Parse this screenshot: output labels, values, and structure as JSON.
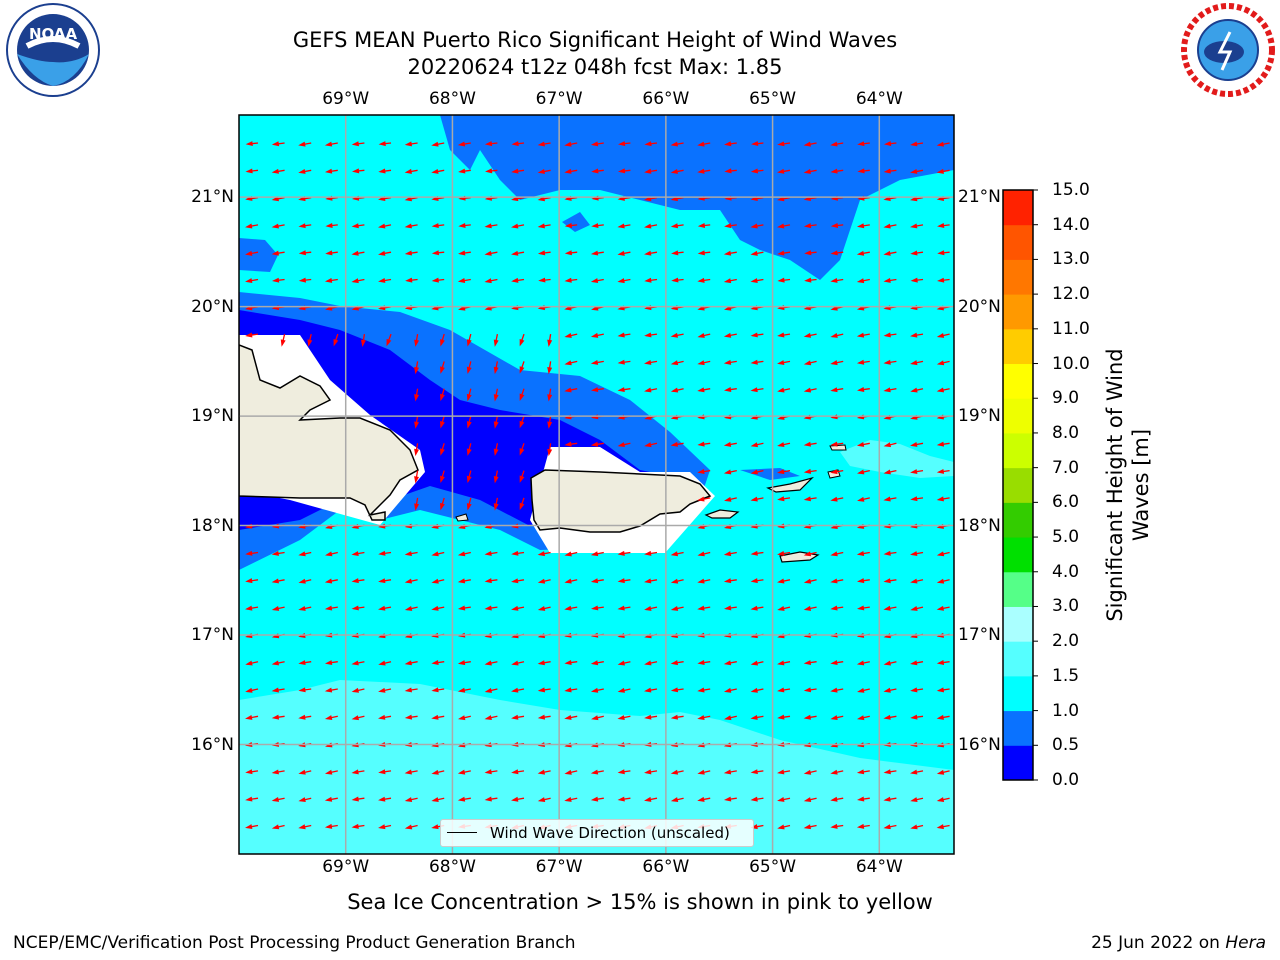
{
  "header": {
    "title_line1": "GEFS MEAN Puerto Rico Significant Height of Wind Waves",
    "title_line2": "20220624 t12z 048h fcst   Max: 1.85"
  },
  "logos": {
    "left": "noaa-logo",
    "right": "national-weather-service-logo"
  },
  "map": {
    "lon_labels": [
      "69°W",
      "68°W",
      "67°W",
      "66°W",
      "65°W",
      "64°W"
    ],
    "lat_labels": [
      "21°N",
      "20°N",
      "19°N",
      "18°N",
      "17°N",
      "16°N"
    ],
    "lon_range": [
      -70.0,
      -63.3
    ],
    "lat_range": [
      15.0,
      21.75
    ],
    "ocean_color": "#00ffff",
    "land_color": "#efedde",
    "arrow_color": "#ff0000"
  },
  "legend": {
    "label": "Wind Wave Direction (unscaled)"
  },
  "colorbar": {
    "label_line1": "Significant Height of Wind",
    "label_line2": "Waves [m]",
    "ticks": [
      "0.0",
      "0.5",
      "1.0",
      "1.5",
      "2.0",
      "3.0",
      "4.0",
      "5.0",
      "6.0",
      "7.0",
      "8.0",
      "9.0",
      "10.0",
      "11.0",
      "12.0",
      "13.0",
      "14.0",
      "15.0"
    ],
    "colors": [
      "#0000ff",
      "#0a72ff",
      "#00ffff",
      "#55ffff",
      "#aaffff",
      "#55ff88",
      "#00e000",
      "#33cc00",
      "#99dd00",
      "#ccff00",
      "#eeff00",
      "#ffff00",
      "#ffcc00",
      "#ff9900",
      "#ff7700",
      "#ff5500",
      "#ff2200"
    ]
  },
  "chart_data": {
    "type": "heatmap",
    "variable": "Significant Height of Wind Waves",
    "units": "m",
    "max_value": 1.85,
    "levels": [
      0.0,
      0.5,
      1.0,
      1.5,
      2.0,
      3.0,
      4.0,
      5.0,
      6.0,
      7.0,
      8.0,
      9.0,
      10.0,
      11.0,
      12.0,
      13.0,
      14.0,
      15.0
    ]
  },
  "footer": {
    "sea_ice_note": "Sea Ice Concentration > 15% is shown in pink to yellow",
    "left": "NCEP/EMC/Verification Post Processing Product Generation Branch",
    "right_date": "25 Jun 2022 on ",
    "right_host": "Hera"
  }
}
